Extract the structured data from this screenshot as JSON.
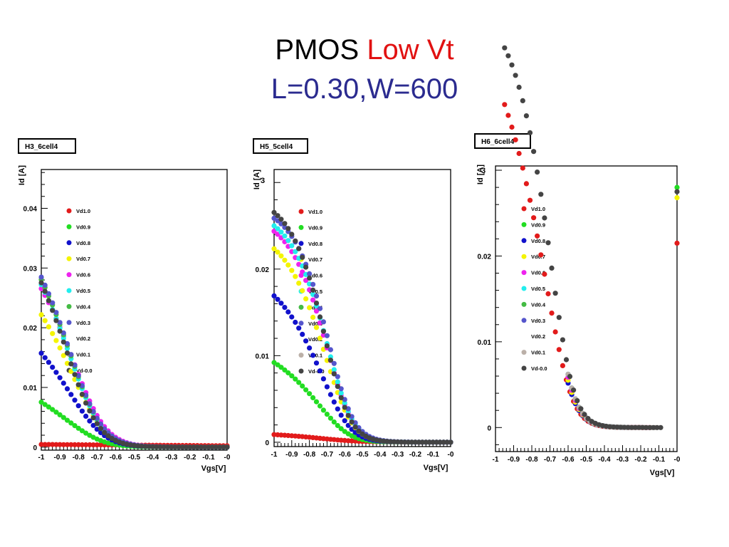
{
  "title": {
    "main": "PMOS",
    "highlight": "Low Vt",
    "sub": "L=0.30,W=600"
  },
  "colors": {
    "Vd1.0": "#e21b1b",
    "Vd0.9": "#22dd22",
    "Vd0.8": "#1111cc",
    "Vd0.7": "#f4f400",
    "Vd0.6": "#ee22ee",
    "Vd0.5": "#22eeee",
    "Vd0.4": "#44bb44",
    "Vd0.3": "#5555cc",
    "Vd0.2": "#ffffff",
    "Vd0.1": "#bbb0a8",
    "Vd-0.0": "#444444"
  },
  "chart_data": [
    {
      "type": "scatter",
      "label": "H3_6cell4",
      "xlabel": "Vgs[V]",
      "ylabel": "Id [A]",
      "xlim": [
        -1,
        0
      ],
      "ylim": [
        -0.0005,
        0.0465
      ],
      "xticks": [
        "-1",
        "-0.9",
        "-0.8",
        "-0.7",
        "-0.6",
        "-0.5",
        "-0.4",
        "-0.3",
        "-0.2",
        "-0.1",
        "-0"
      ],
      "yticks": [
        {
          "v": 0,
          "t": "0"
        },
        {
          "v": 0.01,
          "t": "0.01"
        },
        {
          "v": 0.02,
          "t": "0.02"
        },
        {
          "v": 0.03,
          "t": "0.03"
        },
        {
          "v": 0.04,
          "t": "0.04"
        }
      ],
      "legend": [
        "Vd1.0",
        "Vd0.9",
        "Vd0.8",
        "Vd0.7",
        "Vd0.6",
        "Vd0.5",
        "Vd0.4",
        "Vd0.3",
        "Vd0.2",
        "Vd0.1",
        "Vd-0.0"
      ],
      "series": [
        {
          "name": "Vd1.0",
          "vt": 0.7,
          "k": 0,
          "sat": 0.00045,
          "s": 0.1,
          "x0": -1,
          "x1": 0
        },
        {
          "name": "Vd0.9",
          "vt": 0.7,
          "k": 0.028,
          "sat": 0.014,
          "s": 0.07,
          "x0": -1,
          "x1": 0
        },
        {
          "name": "Vd0.8",
          "vt": 0.7,
          "k": 0.062,
          "sat": 0.0245,
          "s": 0.07,
          "x0": -1,
          "x1": 0
        },
        {
          "name": "Vd0.7",
          "vt": 0.7,
          "k": 0.09,
          "sat": 0.0325,
          "s": 0.07,
          "x0": -1,
          "x1": 0
        },
        {
          "name": "Vd0.6",
          "vt": 0.7,
          "k": 0.11,
          "sat": 0.0375,
          "s": 0.07,
          "x0": -1,
          "x1": 0
        },
        {
          "name": "Vd0.5",
          "vt": 0.72,
          "k": 0.118,
          "sat": 0.04,
          "s": 0.07,
          "x0": -1,
          "x1": 0
        },
        {
          "name": "Vd0.4",
          "vt": 0.72,
          "k": 0.122,
          "sat": 0.041,
          "s": 0.07,
          "x0": -1,
          "x1": 0
        },
        {
          "name": "Vd0.3",
          "vt": 0.72,
          "k": 0.124,
          "sat": 0.0415,
          "s": 0.07,
          "x0": -1,
          "x1": 0
        },
        {
          "name": "Vd-0.0",
          "vt": 0.74,
          "k": 0.126,
          "sat": 0.042,
          "s": 0.07,
          "x0": -1,
          "x1": 0
        }
      ]
    },
    {
      "type": "scatter",
      "label": "H5_5cell4",
      "xlabel": "Vgs[V]",
      "ylabel": "Id [A]",
      "exponent": "3",
      "xlim": [
        -1,
        0
      ],
      "ylim": [
        -0.0005,
        0.0315
      ],
      "xticks": [
        "-1",
        "-0.9",
        "-0.8",
        "-0.7",
        "-0.6",
        "-0.5",
        "-0.4",
        "-0.3",
        "-0.2",
        "-0.1",
        "-0"
      ],
      "yticks": [
        {
          "v": 0,
          "t": "0"
        },
        {
          "v": 0.01,
          "t": "0.01"
        },
        {
          "v": 0.02,
          "t": "0.02"
        }
      ],
      "legend": [
        "Vd1.0",
        "Vd0.9",
        "Vd0.8",
        "Vd0.7",
        "Vd0.6",
        "Vd0.5",
        "Vd0.4",
        "Vd0.3",
        "Vd0.2",
        "Vd0.1",
        "Vd-0.0"
      ],
      "series": [
        {
          "name": "Vd1.0",
          "vt": 0.6,
          "k": 0.003,
          "sat": 0.0011,
          "s": 0.1,
          "x0": -1,
          "x1": 0
        },
        {
          "name": "Vd0.9",
          "vt": 0.6,
          "k": 0.03,
          "sat": 0.0122,
          "s": 0.06,
          "x0": -1,
          "x1": 0
        },
        {
          "name": "Vd0.8",
          "vt": 0.6,
          "k": 0.06,
          "sat": 0.0205,
          "s": 0.06,
          "x0": -1,
          "x1": 0
        },
        {
          "name": "Vd0.7",
          "vt": 0.6,
          "k": 0.09,
          "sat": 0.025,
          "s": 0.06,
          "x0": -1,
          "x1": 0
        },
        {
          "name": "Vd0.6",
          "vt": 0.6,
          "k": 0.105,
          "sat": 0.0265,
          "s": 0.06,
          "x0": -1,
          "x1": 0
        },
        {
          "name": "Vd0.5",
          "vt": 0.6,
          "k": 0.11,
          "sat": 0.027,
          "s": 0.06,
          "x0": -1,
          "x1": 0
        },
        {
          "name": "Vd0.3",
          "vt": 0.6,
          "k": 0.12,
          "sat": 0.0275,
          "s": 0.06,
          "x0": -1,
          "x1": 0
        },
        {
          "name": "Vd-0.0",
          "vt": 0.62,
          "k": 0.125,
          "sat": 0.0285,
          "s": 0.06,
          "x0": -1,
          "x1": 0
        }
      ]
    },
    {
      "type": "scatter",
      "label": "H6_6cell4",
      "xlabel": "Vgs[V]",
      "ylabel": "Id [A]",
      "exponent": "3",
      "xlim": [
        -1,
        0
      ],
      "ylim": [
        -0.0028,
        0.0305
      ],
      "xticks": [
        "-1",
        "-0.9",
        "-0.8",
        "-0.7",
        "-0.6",
        "-0.5",
        "-0.4",
        "-0.3",
        "-0.2",
        "-0.1",
        "-0"
      ],
      "yticks": [
        {
          "v": 0,
          "t": "0"
        },
        {
          "v": 0.01,
          "t": "0.01"
        },
        {
          "v": 0.02,
          "t": "0.02"
        }
      ],
      "legend": [
        "Vd1.0",
        "Vd0.9",
        "Vd0.8",
        "Vd0.7",
        "Vd0.6",
        "Vd0.5",
        "Vd0.4",
        "Vd0.3",
        "Vd0.2",
        "Vd0.1",
        "Vd-0.0"
      ],
      "series": [
        {
          "name": "Vd1.0",
          "vt": 0.6,
          "k": 0.14,
          "sat": 0.05,
          "s": 0.05,
          "x0": -0.95,
          "x1": -0.14,
          "end": [
            0,
            0.0215
          ]
        },
        {
          "name": "Vd0.9",
          "vt": 0.6,
          "k": 0.17,
          "sat": 0.05,
          "s": 0.05,
          "x0": -0.6,
          "x1": -0.18,
          "end": [
            0,
            0.028
          ]
        },
        {
          "name": "Vd0.8",
          "vt": 0.6,
          "k": 0.15,
          "sat": 0.05,
          "s": 0.05,
          "x0": -0.6,
          "x1": -0.3
        },
        {
          "name": "Vd0.7",
          "vt": 0.6,
          "k": 0.16,
          "sat": 0.05,
          "s": 0.05,
          "x0": -0.6,
          "x1": -0.3,
          "end": [
            0,
            0.0268
          ]
        },
        {
          "name": "Vd0.6",
          "vt": 0.6,
          "k": 0.17,
          "sat": 0.05,
          "s": 0.05,
          "x0": -0.6,
          "x1": -0.16
        },
        {
          "name": "Vd0.5",
          "vt": 0.6,
          "k": 0.18,
          "sat": 0.05,
          "s": 0.05,
          "x0": -0.6,
          "x1": -0.27
        },
        {
          "name": "Vd0.4",
          "vt": 0.6,
          "k": 0.18,
          "sat": 0.05,
          "s": 0.05,
          "x0": -0.6,
          "x1": -0.27
        },
        {
          "name": "Vd0.3",
          "vt": 0.6,
          "k": 0.18,
          "sat": 0.05,
          "s": 0.05,
          "x0": -0.6,
          "x1": -0.27
        },
        {
          "name": "Vd0.1",
          "vt": 0.6,
          "k": 0.18,
          "sat": 0.05,
          "s": 0.05,
          "x0": -0.6,
          "x1": -0.12
        },
        {
          "name": "Vd-0.0",
          "vt": 0.6,
          "k": 0.2,
          "sat": 0.05,
          "s": 0.05,
          "x0": -0.95,
          "x1": -0.1,
          "end": [
            0,
            0.0275
          ]
        }
      ]
    }
  ]
}
